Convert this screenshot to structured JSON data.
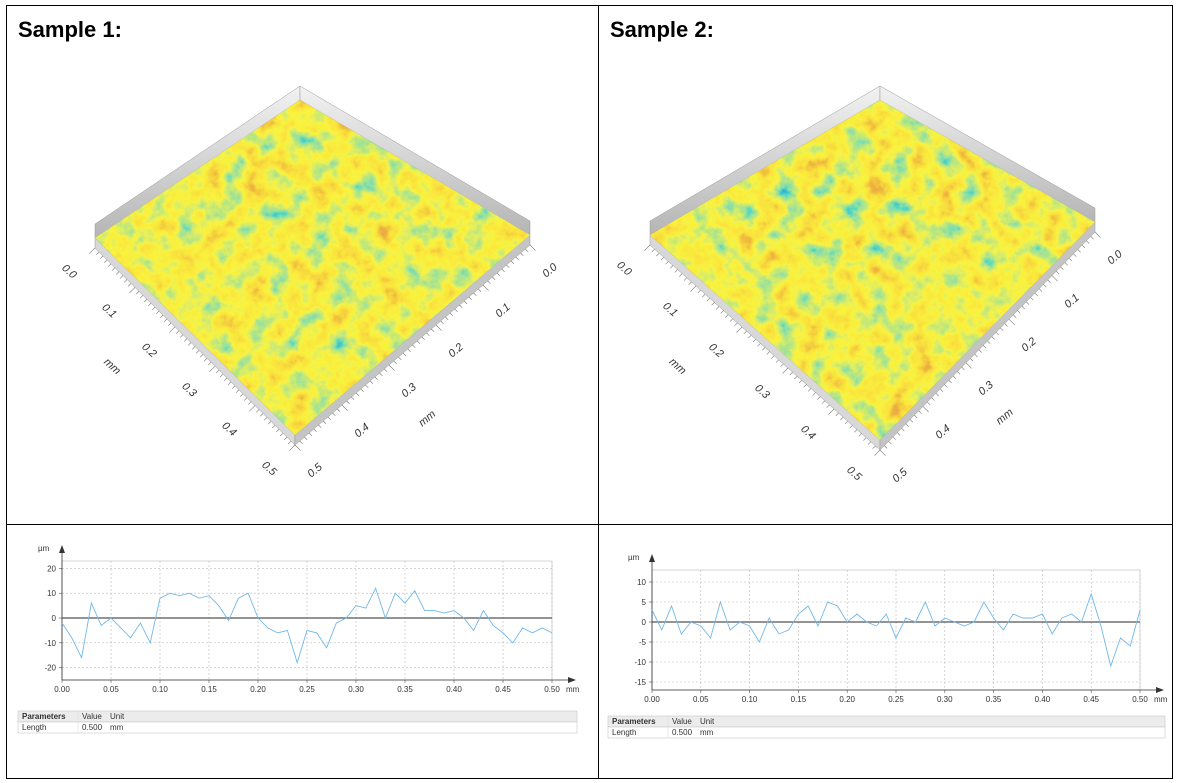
{
  "samples": [
    {
      "title": "Sample 1:",
      "surface": {
        "left_ticks": [
          "0.0",
          "0.1",
          "0.2",
          "0.3",
          "0.4",
          "0.5"
        ],
        "left_unit": "mm",
        "right_ticks": [
          "0.0",
          "0.1",
          "0.2",
          "0.3",
          "0.4",
          "0.5"
        ],
        "right_unit": "mm"
      },
      "profile": {
        "type": "line",
        "y_unit": "µm",
        "x_unit": "mm",
        "grid": true,
        "x": [
          0,
          0.01,
          0.02,
          0.03,
          0.04,
          0.05,
          0.06,
          0.07,
          0.08,
          0.09,
          0.1,
          0.11,
          0.12,
          0.13,
          0.14,
          0.15,
          0.16,
          0.17,
          0.18,
          0.19,
          0.2,
          0.21,
          0.22,
          0.23,
          0.24,
          0.25,
          0.26,
          0.27,
          0.28,
          0.29,
          0.3,
          0.31,
          0.32,
          0.33,
          0.34,
          0.35,
          0.36,
          0.37,
          0.38,
          0.39,
          0.4,
          0.41,
          0.42,
          0.43,
          0.44,
          0.45,
          0.46,
          0.47,
          0.48,
          0.49,
          0.5
        ],
        "series": [
          {
            "color": "#72b8ea",
            "values": [
              -2,
              -8,
              -16,
              6,
              -3,
              0,
              -4,
              -8,
              -2,
              -10,
              8,
              10,
              9,
              10,
              8,
              9,
              5,
              -1,
              8,
              10,
              0,
              -4,
              -6,
              -5,
              -18,
              -5,
              -6,
              -12,
              -2,
              0,
              5,
              4,
              12,
              0,
              10,
              6,
              11,
              3,
              3,
              2,
              3,
              0,
              -5,
              3,
              -3,
              -6,
              -10,
              -4,
              -6,
              -4,
              -6
            ]
          }
        ],
        "xlim": [
          0,
          0.5
        ],
        "ylim": [
          -25,
          23
        ],
        "xticks": [
          {
            "value": 0,
            "label": "0.00"
          },
          {
            "value": 0.05,
            "label": "0.05"
          },
          {
            "value": 0.1,
            "label": "0.10"
          },
          {
            "value": 0.15,
            "label": "0.15"
          },
          {
            "value": 0.2,
            "label": "0.20"
          },
          {
            "value": 0.25,
            "label": "0.25"
          },
          {
            "value": 0.3,
            "label": "0.30"
          },
          {
            "value": 0.35,
            "label": "0.35"
          },
          {
            "value": 0.4,
            "label": "0.40"
          },
          {
            "value": 0.45,
            "label": "0.45"
          },
          {
            "value": 0.5,
            "label": "0.50"
          }
        ],
        "yticks": [
          -20,
          -10,
          0,
          10,
          20
        ]
      },
      "parameters": {
        "header": [
          "Parameters",
          "Value",
          "Unit"
        ],
        "rows": [
          [
            "Length",
            "0.500",
            "mm"
          ]
        ]
      }
    },
    {
      "title": "Sample 2:",
      "surface": {
        "left_ticks": [
          "0.0",
          "0.1",
          "0.2",
          "0.3",
          "0.4",
          "0.5"
        ],
        "left_unit": "mm",
        "right_ticks": [
          "0.0",
          "0.1",
          "0.2",
          "0.3",
          "0.4",
          "0.5"
        ],
        "right_unit": "mm"
      },
      "profile": {
        "type": "line",
        "y_unit": "µm",
        "x_unit": "mm",
        "grid": true,
        "x": [
          0,
          0.01,
          0.02,
          0.03,
          0.04,
          0.05,
          0.06,
          0.07,
          0.08,
          0.09,
          0.1,
          0.11,
          0.12,
          0.13,
          0.14,
          0.15,
          0.16,
          0.17,
          0.18,
          0.19,
          0.2,
          0.21,
          0.22,
          0.23,
          0.24,
          0.25,
          0.26,
          0.27,
          0.28,
          0.29,
          0.3,
          0.31,
          0.32,
          0.33,
          0.34,
          0.35,
          0.36,
          0.37,
          0.38,
          0.39,
          0.4,
          0.41,
          0.42,
          0.43,
          0.44,
          0.45,
          0.46,
          0.47,
          0.48,
          0.49,
          0.5
        ],
        "series": [
          {
            "color": "#72b8ea",
            "values": [
              3,
              -2,
              4,
              -3,
              0,
              -1,
              -4,
              5,
              -2,
              0,
              -1,
              -5,
              1,
              -3,
              -2,
              2,
              4,
              -1,
              5,
              4,
              0,
              2,
              0,
              -1,
              2,
              -4,
              1,
              0,
              5,
              -1,
              1,
              0,
              -1,
              0,
              5,
              1,
              -2,
              2,
              1,
              1,
              2,
              -3,
              1,
              2,
              0,
              7,
              -1,
              -11,
              -4,
              -6,
              3
            ]
          }
        ],
        "xlim": [
          0,
          0.5
        ],
        "ylim": [
          -17,
          13
        ],
        "xticks": [
          {
            "value": 0,
            "label": "0.00"
          },
          {
            "value": 0.05,
            "label": "0.05"
          },
          {
            "value": 0.1,
            "label": "0.10"
          },
          {
            "value": 0.15,
            "label": "0.15"
          },
          {
            "value": 0.2,
            "label": "0.20"
          },
          {
            "value": 0.25,
            "label": "0.25"
          },
          {
            "value": 0.3,
            "label": "0.30"
          },
          {
            "value": 0.35,
            "label": "0.35"
          },
          {
            "value": 0.4,
            "label": "0.40"
          },
          {
            "value": 0.45,
            "label": "0.45"
          },
          {
            "value": 0.5,
            "label": "0.50"
          }
        ],
        "yticks": [
          -15,
          -10,
          -5,
          0,
          5,
          10
        ]
      },
      "parameters": {
        "header": [
          "Parameters",
          "Value",
          "Unit"
        ],
        "rows": [
          [
            "Length",
            "0.500",
            "mm"
          ]
        ]
      }
    }
  ]
}
